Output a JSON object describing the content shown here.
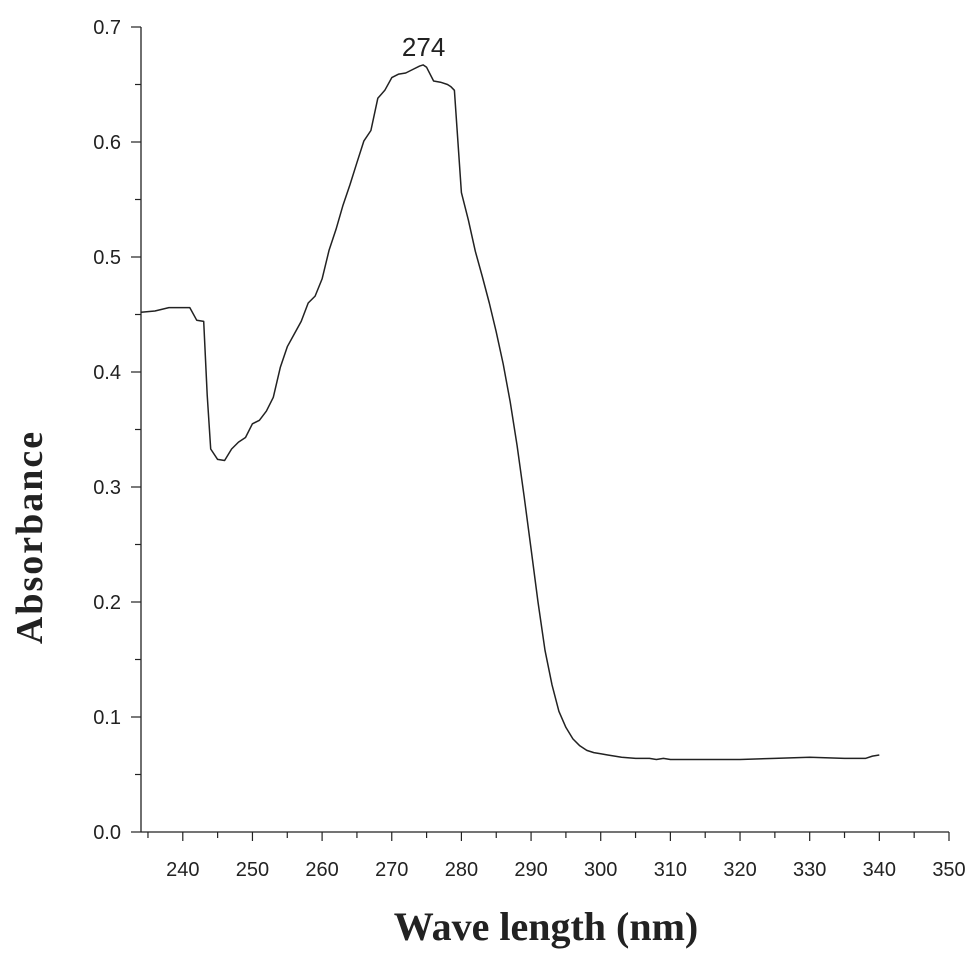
{
  "chart_data": {
    "type": "line",
    "title": "",
    "xlabel": "Wave length (nm)",
    "ylabel": "Absorbance",
    "xlim": [
      234,
      350
    ],
    "ylim": [
      0,
      0.7
    ],
    "x_ticks": [
      240,
      250,
      260,
      270,
      280,
      290,
      300,
      310,
      320,
      330,
      340,
      350
    ],
    "x_tick_labels": [
      "240",
      "250",
      "260",
      "270",
      "280",
      "290",
      "300",
      "310",
      "320",
      "330",
      "340",
      "350"
    ],
    "y_ticks": [
      0,
      0.1,
      0.2,
      0.3,
      0.4,
      0.5,
      0.6,
      0.7
    ],
    "y_tick_labels": [
      "0.0",
      "0.1",
      "0.2",
      "0.3",
      "0.4",
      "0.5",
      "0.6",
      "0.7"
    ],
    "grid": false,
    "legend": "none",
    "line_color": "#222222",
    "annotations": [
      {
        "text": "274",
        "x": 274,
        "y": 0.666
      }
    ],
    "series": [
      {
        "x": [
          234,
          236,
          238,
          239,
          241,
          242,
          243,
          243.5,
          244,
          245,
          246,
          247,
          248,
          249,
          250,
          251,
          252,
          253,
          254,
          255,
          256,
          257,
          258,
          259,
          260,
          261,
          262,
          263,
          264,
          265,
          266,
          267,
          268,
          269,
          270,
          271,
          272,
          273,
          274,
          274.5,
          275,
          276,
          277,
          278,
          278.5,
          279,
          280,
          281,
          282,
          283,
          284,
          285,
          286,
          287,
          288,
          289,
          290,
          291,
          292,
          293,
          294,
          295,
          296,
          297,
          298,
          299,
          300,
          301,
          302,
          303,
          305,
          307,
          308,
          309,
          310,
          315,
          320,
          325,
          330,
          335,
          338,
          339,
          340
        ],
        "y": [
          0.452,
          0.453,
          0.456,
          0.456,
          0.456,
          0.445,
          0.444,
          0.38,
          0.333,
          0.324,
          0.323,
          0.333,
          0.339,
          0.343,
          0.355,
          0.358,
          0.366,
          0.378,
          0.404,
          0.422,
          0.433,
          0.444,
          0.46,
          0.466,
          0.481,
          0.506,
          0.524,
          0.545,
          0.563,
          0.582,
          0.601,
          0.61,
          0.638,
          0.645,
          0.656,
          0.659,
          0.66,
          0.663,
          0.666,
          0.667,
          0.665,
          0.653,
          0.652,
          0.65,
          0.648,
          0.645,
          0.556,
          0.532,
          0.505,
          0.483,
          0.46,
          0.435,
          0.407,
          0.374,
          0.336,
          0.292,
          0.246,
          0.2,
          0.158,
          0.128,
          0.105,
          0.091,
          0.081,
          0.075,
          0.071,
          0.069,
          0.068,
          0.067,
          0.066,
          0.065,
          0.064,
          0.064,
          0.063,
          0.064,
          0.063,
          0.063,
          0.063,
          0.064,
          0.065,
          0.064,
          0.064,
          0.066,
          0.067
        ]
      }
    ]
  }
}
